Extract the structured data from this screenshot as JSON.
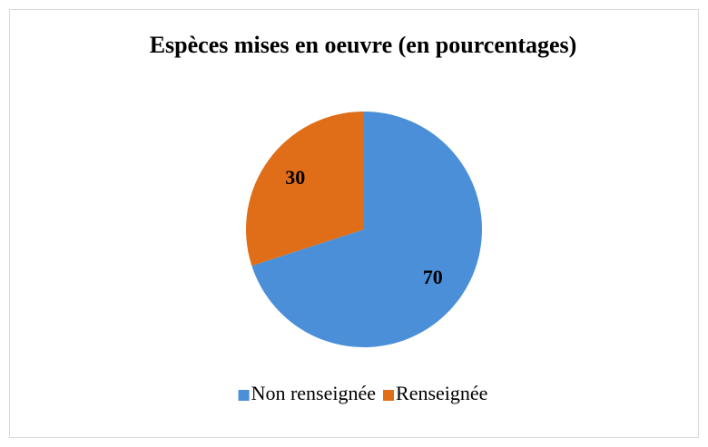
{
  "chart_data": {
    "type": "pie",
    "title": "Espèces mises en oeuvre (en pourcentages)",
    "categories": [
      "Non renseignée",
      "Renseignée"
    ],
    "values": [
      70,
      30
    ],
    "colors": [
      "#4a8fd8",
      "#e06d17"
    ],
    "legend": "bottom"
  }
}
